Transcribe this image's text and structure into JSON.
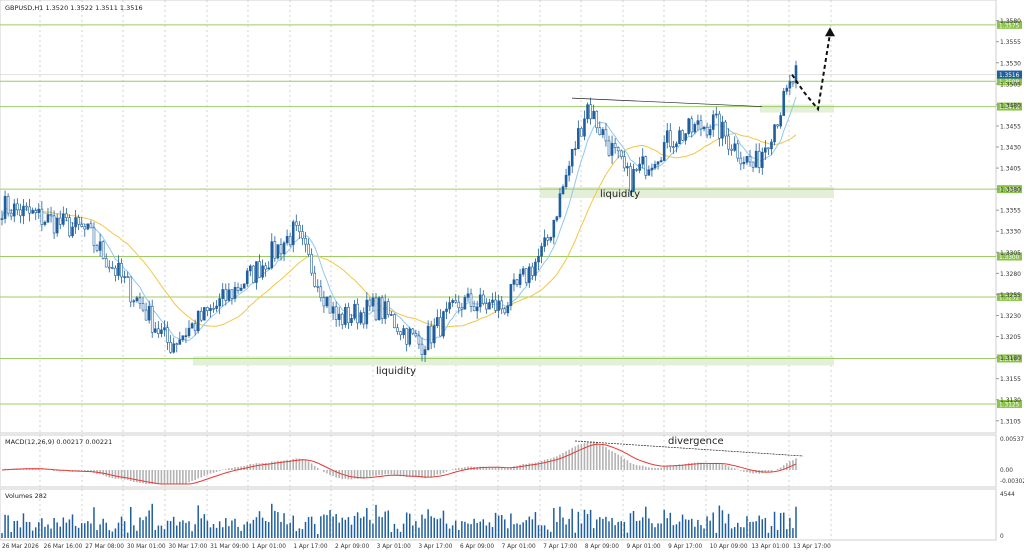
{
  "window_title": "GBPUSD,H1  1.3520 1.3522 1.3511 1.3516",
  "colors": {
    "background": "#ffffff",
    "grid": "#c8c8c8",
    "level_line": "#9ccc65",
    "level_label_bg": "#8bc34a",
    "zone_fill": "#e3efd6",
    "candle": "#1f5f9e",
    "ma_fast": "#8fc8f0",
    "ma_slow": "#f2c744",
    "macd_hist": "#b3b3b3",
    "macd_signal": "#e53935",
    "volume": "#1f5f9e",
    "annotation_line": "#222222"
  },
  "price_axis": {
    "ticks": [
      "1.3580",
      "1.3555",
      "1.3530",
      "1.3505",
      "1.3480",
      "1.3455",
      "1.3430",
      "1.3405",
      "1.3380",
      "1.3355",
      "1.3330",
      "1.3305",
      "1.3280",
      "1.3255",
      "1.3230",
      "1.3205",
      "1.3180",
      "1.3155",
      "1.3130",
      "1.3105"
    ],
    "current_price_label": "1.3516"
  },
  "levels": [
    {
      "price": "1.3575",
      "label": "1.3575"
    },
    {
      "price": "1.3508",
      "label": "1.3508"
    },
    {
      "price": "1.3478",
      "label": "1.3478"
    },
    {
      "price": "1.3380",
      "label": "1.3380"
    },
    {
      "price": "1.3300",
      "label": "1.3300"
    },
    {
      "price": "1.3252",
      "label": "1.3252"
    },
    {
      "price": "1.3179",
      "label": "1.3179"
    },
    {
      "price": "1.3125",
      "label": "1.3125"
    }
  ],
  "annotations": {
    "liquidity_upper": "liquidity",
    "liquidity_lower": "liquidity",
    "divergence": "divergence"
  },
  "macd_panel": {
    "title": "MACD(12,26,9) 0.00217 0.00221",
    "ticks": [
      "0.00537",
      "0.00",
      "-0.00302"
    ]
  },
  "volume_panel": {
    "title": "Volumes 282",
    "ticks": [
      "4544",
      "0"
    ]
  },
  "time_axis": [
    "26 Mar 2026",
    "26 Mar 16:00",
    "27 Mar 08:00",
    "30 Mar 01:00",
    "30 Mar 17:00",
    "31 Mar 09:00",
    "1 Apr 01:00",
    "1 Apr 17:00",
    "2 Apr 09:00",
    "3 Apr 01:00",
    "3 Apr 17:00",
    "6 Apr 09:00",
    "7 Apr 01:00",
    "7 Apr 17:00",
    "8 Apr 09:00",
    "9 Apr 01:00",
    "9 Apr 17:00",
    "10 Apr 09:00",
    "13 Apr 01:00",
    "13 Apr 17:00"
  ],
  "chart_data": {
    "type": "candlestick",
    "symbol": "GBPUSD",
    "timeframe": "H1",
    "ylim": [
      1.31,
      1.3595
    ],
    "close_path": [
      [
        "26 Mar 2026",
        1.336
      ],
      [
        "26 Mar 16:00",
        1.3345
      ],
      [
        "27 Mar 08:00",
        1.333
      ],
      [
        "30 Mar 01:00",
        1.3265
      ],
      [
        "30 Mar 17:00",
        1.3195
      ],
      [
        "31 Mar 09:00",
        1.3235
      ],
      [
        "1 Apr 01:00",
        1.328
      ],
      [
        "1 Apr 17:00",
        1.333
      ],
      [
        "2 Apr 09:00",
        1.3225
      ],
      [
        "3 Apr 01:00",
        1.324
      ],
      [
        "3 Apr 17:00",
        1.3195
      ],
      [
        "6 Apr 09:00",
        1.3245
      ],
      [
        "7 Apr 01:00",
        1.324
      ],
      [
        "7 Apr 17:00",
        1.331
      ],
      [
        "8 Apr 09:00",
        1.348
      ],
      [
        "9 Apr 01:00",
        1.339
      ],
      [
        "9 Apr 17:00",
        1.344
      ],
      [
        "10 Apr 09:00",
        1.346
      ],
      [
        "13 Apr 01:00",
        1.3405
      ],
      [
        "13 Apr 17:00",
        1.3516
      ]
    ],
    "moving_averages": [
      "fast",
      "slow"
    ],
    "projection": [
      1.3516,
      1.3495,
      1.3475,
      1.3565
    ]
  }
}
